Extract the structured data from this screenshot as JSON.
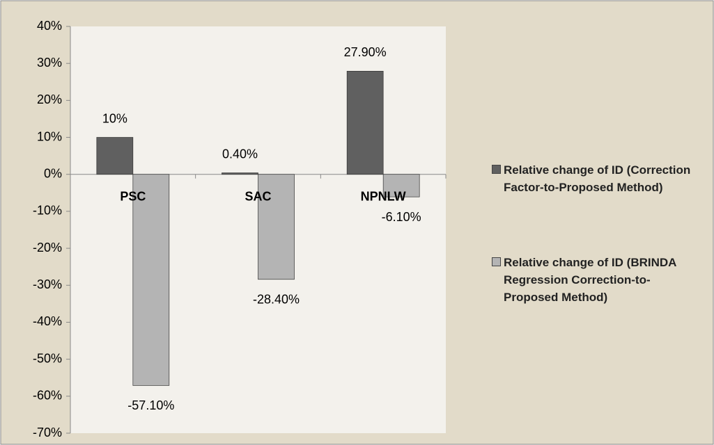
{
  "chart_data": {
    "type": "bar",
    "categories": [
      "PSC",
      "SAC",
      "NPNLW"
    ],
    "series": [
      {
        "name": "Relative change of ID (Correction Factor-to-Proposed Method)",
        "color": "#606060",
        "values": [
          10,
          0.4,
          27.9
        ],
        "value_labels": [
          "10%",
          "0.40%",
          "27.90%"
        ]
      },
      {
        "name": "Relative change of ID (BRINDA Regression Correction-to-Proposed Method)",
        "color": "#b4b4b4",
        "values": [
          -57.1,
          -28.4,
          -6.1
        ],
        "value_labels": [
          "-57.10%",
          "-28.40%",
          "-6.10%"
        ]
      }
    ],
    "ylim": [
      -70,
      40
    ],
    "yticks": [
      {
        "value": -70,
        "label": "-70%"
      },
      {
        "value": -60,
        "label": "-60%"
      },
      {
        "value": -50,
        "label": "-50%"
      },
      {
        "value": -40,
        "label": "-40%"
      },
      {
        "value": -30,
        "label": "-30%"
      },
      {
        "value": -20,
        "label": "-20%"
      },
      {
        "value": -10,
        "label": "-10%"
      },
      {
        "value": 0,
        "label": "0%"
      },
      {
        "value": 10,
        "label": "10%"
      },
      {
        "value": 20,
        "label": "20%"
      },
      {
        "value": 30,
        "label": "30%"
      },
      {
        "value": 40,
        "label": "40%"
      }
    ],
    "legend": "right"
  }
}
